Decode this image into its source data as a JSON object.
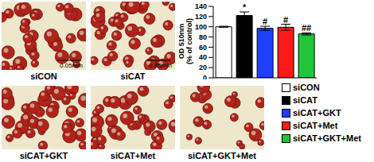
{
  "chart_data": {
    "type": "bar",
    "y_label": "OD 510nm (% of control)",
    "categories": [
      "siCON",
      "siCAT",
      "siCAT+GKT",
      "siCAT+Met",
      "siCAT+GKT+Met"
    ],
    "values": [
      100,
      122,
      97,
      99,
      86
    ],
    "errors": [
      1,
      7,
      4,
      6,
      2
    ],
    "annotations": [
      null,
      "*",
      "#",
      "#",
      "##"
    ],
    "colors": [
      "#ffffff",
      "#000000",
      "#1f3fff",
      "#ff1a1a",
      "#22c43a"
    ],
    "ylim": [
      0,
      140
    ],
    "yticks": [
      0,
      20,
      40,
      60,
      80,
      100,
      120,
      140
    ],
    "grid": false,
    "tick_labels": "y",
    "legend": "right"
  },
  "panels": [
    {
      "label": "siCON",
      "scale_bar": "0.05mm"
    },
    {
      "label": "siCAT",
      "scale_bar": "0.05mm"
    },
    {
      "label": "siCAT+GKT"
    },
    {
      "label": "siCAT+Met"
    },
    {
      "label": "siCAT+GKT+Met"
    }
  ]
}
